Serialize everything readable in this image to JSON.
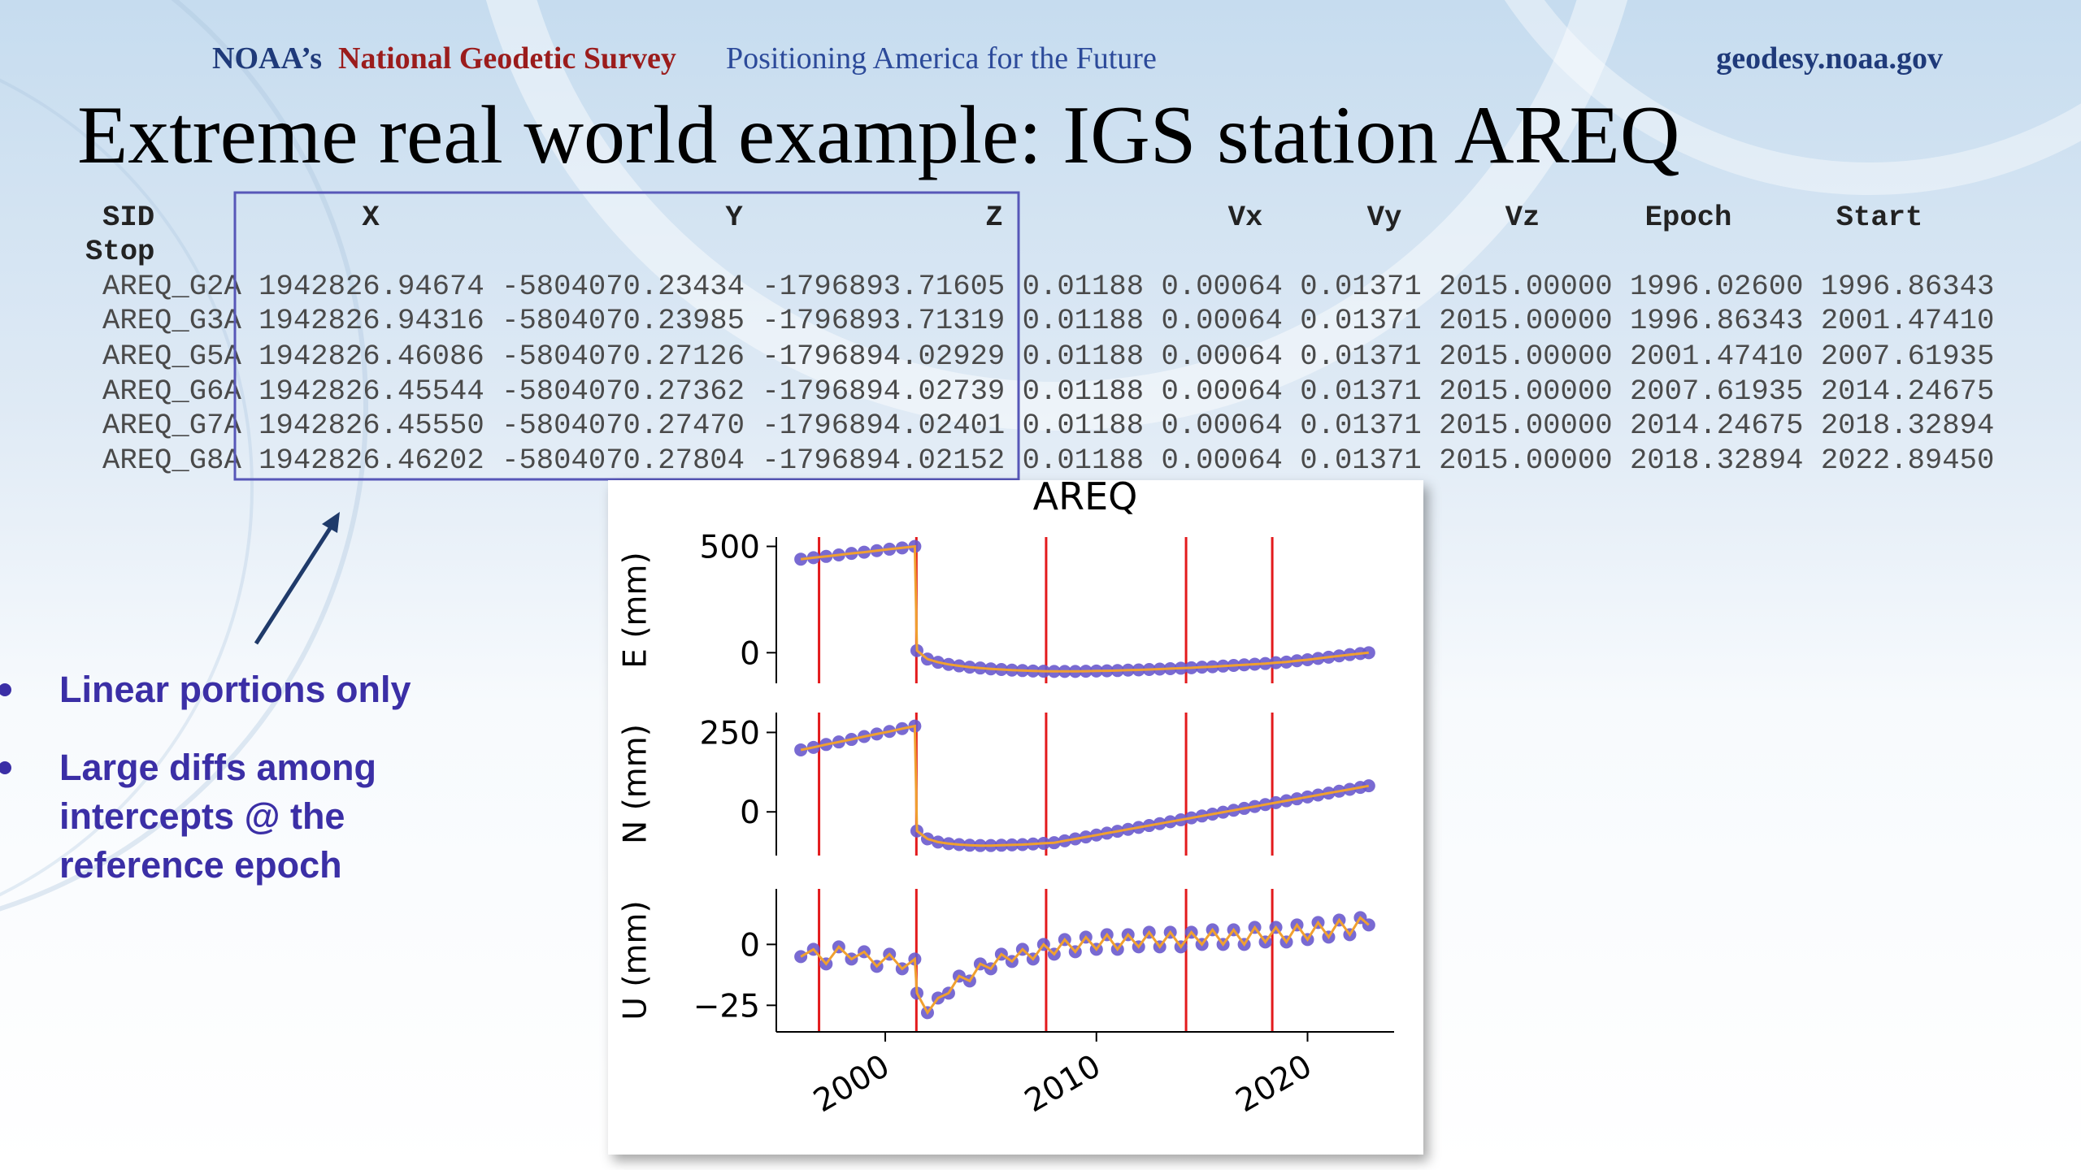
{
  "header": {
    "brand": "NOAA’s",
    "org": "National Geodetic Survey",
    "tagline": "Positioning America for the Future",
    "url": "geodesy.noaa.gov"
  },
  "title": "Extreme real world example: IGS station AREQ",
  "table": {
    "columns": [
      "SID",
      "X",
      "Y",
      "Z",
      "Vx",
      "Vy",
      "Vz",
      "Epoch",
      "Start",
      "Stop"
    ],
    "rows": [
      [
        "AREQ_G2A",
        "1942826.94674",
        "-5804070.23434",
        "-1796893.71605",
        "0.01188",
        "0.00064",
        "0.01371",
        "2015.00000",
        "1996.02600",
        "1996.86343"
      ],
      [
        "AREQ_G3A",
        "1942826.94316",
        "-5804070.23985",
        "-1796893.71319",
        "0.01188",
        "0.00064",
        "0.01371",
        "2015.00000",
        "1996.86343",
        "2001.47410"
      ],
      [
        "AREQ_G5A",
        "1942826.46086",
        "-5804070.27126",
        "-1796894.02929",
        "0.01188",
        "0.00064",
        "0.01371",
        "2015.00000",
        "2001.47410",
        "2007.61935"
      ],
      [
        "AREQ_G6A",
        "1942826.45544",
        "-5804070.27362",
        "-1796894.02739",
        "0.01188",
        "0.00064",
        "0.01371",
        "2015.00000",
        "2007.61935",
        "2014.24675"
      ],
      [
        "AREQ_G7A",
        "1942826.45550",
        "-5804070.27470",
        "-1796894.02401",
        "0.01188",
        "0.00064",
        "0.01371",
        "2015.00000",
        "2014.24675",
        "2018.32894"
      ],
      [
        "AREQ_G8A",
        "1942826.46202",
        "-5804070.27804",
        "-1796894.02152",
        "0.01188",
        "0.00064",
        "0.01371",
        "2015.00000",
        "2018.32894",
        "2022.89450"
      ]
    ]
  },
  "bullets": [
    "Linear portions only",
    "Large diffs among intercepts @ the reference epoch"
  ],
  "chart_data": [
    {
      "type": "line",
      "title": "AREQ",
      "ylabel": "E (mm)",
      "x": [
        1996,
        1996.6,
        1997.2,
        1997.8,
        1998.4,
        1999,
        1999.6,
        2000.2,
        2000.8,
        2001.4,
        2001.5,
        2002,
        2002.5,
        2003,
        2003.5,
        2004,
        2004.5,
        2005,
        2005.5,
        2006,
        2006.5,
        2007,
        2007.5,
        2008,
        2008.5,
        2009,
        2009.5,
        2010,
        2010.5,
        2011,
        2011.5,
        2012,
        2012.5,
        2013,
        2013.5,
        2014,
        2014.5,
        2015,
        2015.5,
        2016,
        2016.5,
        2017,
        2017.5,
        2018,
        2018.5,
        2019,
        2019.5,
        2020,
        2020.5,
        2021,
        2021.5,
        2022,
        2022.5,
        2022.9
      ],
      "xlim": [
        1994.84,
        2024.1
      ],
      "ylim": [
        -144,
        544
      ],
      "yticks": [
        0,
        500
      ],
      "vlines": [
        1996.86343,
        2001.4741,
        2007.61935,
        2014.24675,
        2018.32894
      ],
      "series": [
        {
          "color": "#6a5acd",
          "line_color": "#f0a030",
          "values": [
            440,
            447,
            453,
            460,
            467,
            473,
            480,
            487,
            493,
            500,
            10,
            -30,
            -45,
            -55,
            -62,
            -68,
            -72,
            -76,
            -79,
            -82,
            -84,
            -86,
            -87,
            -88,
            -88,
            -88,
            -87,
            -86,
            -85,
            -84,
            -82,
            -81,
            -79,
            -77,
            -75,
            -73,
            -71,
            -68,
            -66,
            -63,
            -60,
            -57,
            -54,
            -51,
            -47,
            -44,
            -38,
            -33,
            -27,
            -21,
            -15,
            -9,
            -4,
            0
          ]
        }
      ]
    },
    {
      "type": "line",
      "ylabel": "N (mm)",
      "x": [
        1996,
        1996.6,
        1997.2,
        1997.8,
        1998.4,
        1999,
        1999.6,
        2000.2,
        2000.8,
        2001.4,
        2001.5,
        2002,
        2002.5,
        2003,
        2003.5,
        2004,
        2004.5,
        2005,
        2005.5,
        2006,
        2006.5,
        2007,
        2007.5,
        2008,
        2008.5,
        2009,
        2009.5,
        2010,
        2010.5,
        2011,
        2011.5,
        2012,
        2012.5,
        2013,
        2013.5,
        2014,
        2014.5,
        2015,
        2015.5,
        2016,
        2016.5,
        2017,
        2017.5,
        2018,
        2018.5,
        2019,
        2019.5,
        2020,
        2020.5,
        2021,
        2021.5,
        2022,
        2022.5,
        2022.9
      ],
      "xlim": [
        1994.84,
        2024.1
      ],
      "ylim": [
        -137.5,
        312.5
      ],
      "yticks": [
        0,
        250
      ],
      "vlines": [
        1996.86343,
        2001.4741,
        2007.61935,
        2014.24675,
        2018.32894
      ],
      "series": [
        {
          "color": "#6a5acd",
          "line_color": "#f0a030",
          "values": [
            195,
            203,
            212,
            220,
            228,
            237,
            245,
            253,
            262,
            270,
            -60,
            -85,
            -95,
            -100,
            -103,
            -105,
            -106,
            -106,
            -105,
            -104,
            -103,
            -101,
            -99,
            -97,
            -91,
            -85,
            -79,
            -73,
            -67,
            -61,
            -55,
            -49,
            -43,
            -37,
            -31,
            -25,
            -19,
            -13,
            -7,
            -1,
            5,
            11,
            17,
            23,
            29,
            35,
            41,
            47,
            53,
            59,
            65,
            71,
            77,
            82
          ]
        }
      ]
    },
    {
      "type": "line",
      "ylabel": "U (mm)",
      "x": [
        1996,
        1996.6,
        1997.2,
        1997.8,
        1998.4,
        1999,
        1999.6,
        2000.2,
        2000.8,
        2001.4,
        2001.5,
        2002,
        2002.5,
        2003,
        2003.5,
        2004,
        2004.5,
        2005,
        2005.5,
        2006,
        2006.5,
        2007,
        2007.5,
        2008,
        2008.5,
        2009,
        2009.5,
        2010,
        2010.5,
        2011,
        2011.5,
        2012,
        2012.5,
        2013,
        2013.5,
        2014,
        2014.5,
        2015,
        2015.5,
        2016,
        2016.5,
        2017,
        2017.5,
        2018,
        2018.5,
        2019,
        2019.5,
        2020,
        2020.5,
        2021,
        2021.5,
        2022,
        2022.5,
        2022.9
      ],
      "xlim": [
        1994.84,
        2024.1
      ],
      "ylim": [
        -35.9,
        22.8
      ],
      "yticks": [
        {
          "value": -25,
          "label": "−25"
        },
        0
      ],
      "xticks": [
        2000,
        2010,
        2020
      ],
      "vlines": [
        1996.86343,
        2001.4741,
        2007.61935,
        2014.24675,
        2018.32894
      ],
      "series": [
        {
          "color": "#6a5acd",
          "line_color": "#f0a030",
          "values": [
            -5,
            -2,
            -8,
            -1,
            -6,
            -3,
            -9,
            -4,
            -10,
            -6,
            -20,
            -28,
            -22,
            -20,
            -13,
            -15,
            -8,
            -10,
            -4,
            -7,
            -2,
            -6,
            0,
            -4,
            2,
            -3,
            3,
            -2,
            4,
            -2,
            4,
            -1,
            5,
            -1,
            5,
            -1,
            5,
            0,
            6,
            0,
            6,
            0,
            7,
            1,
            7,
            1,
            8,
            2,
            9,
            3,
            10,
            4,
            11,
            8
          ]
        }
      ]
    }
  ]
}
